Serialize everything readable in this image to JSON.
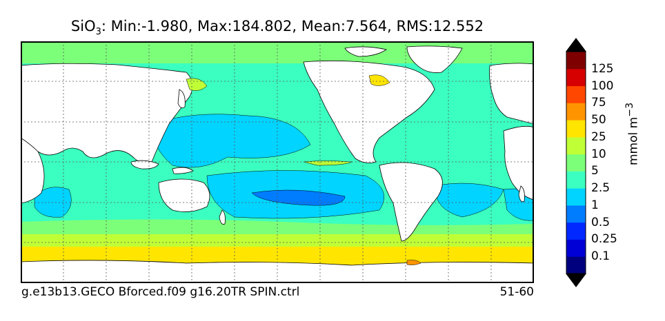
{
  "title": {
    "species_main": "SiO",
    "species_sub": "3",
    "stats": ": Min:-1.980, Max:184.802, Mean:7.564, RMS:12.552"
  },
  "footer": {
    "case_name": "g.e13b13.GECO Bforced.f09 g16.20TR SPIN.ctrl",
    "years": "51-60"
  },
  "colorbar": {
    "unit_main": "mmol m",
    "unit_exp": "−3",
    "levels": [
      "0.1",
      "0.25",
      "0.5",
      "1",
      "2.5",
      "5",
      "10",
      "25",
      "50",
      "75",
      "100",
      "125"
    ],
    "colors": [
      "#00007f",
      "#0000d6",
      "#0028ff",
      "#007cff",
      "#00d4ff",
      "#3bffc0",
      "#7cff79",
      "#c0ff36",
      "#ffe500",
      "#ff9400",
      "#ff4700",
      "#d60000",
      "#7f0000"
    ],
    "extend": "both"
  },
  "map": {
    "projection": "cylindrical",
    "grid": "dotted",
    "land_color": "#ffffff"
  }
}
